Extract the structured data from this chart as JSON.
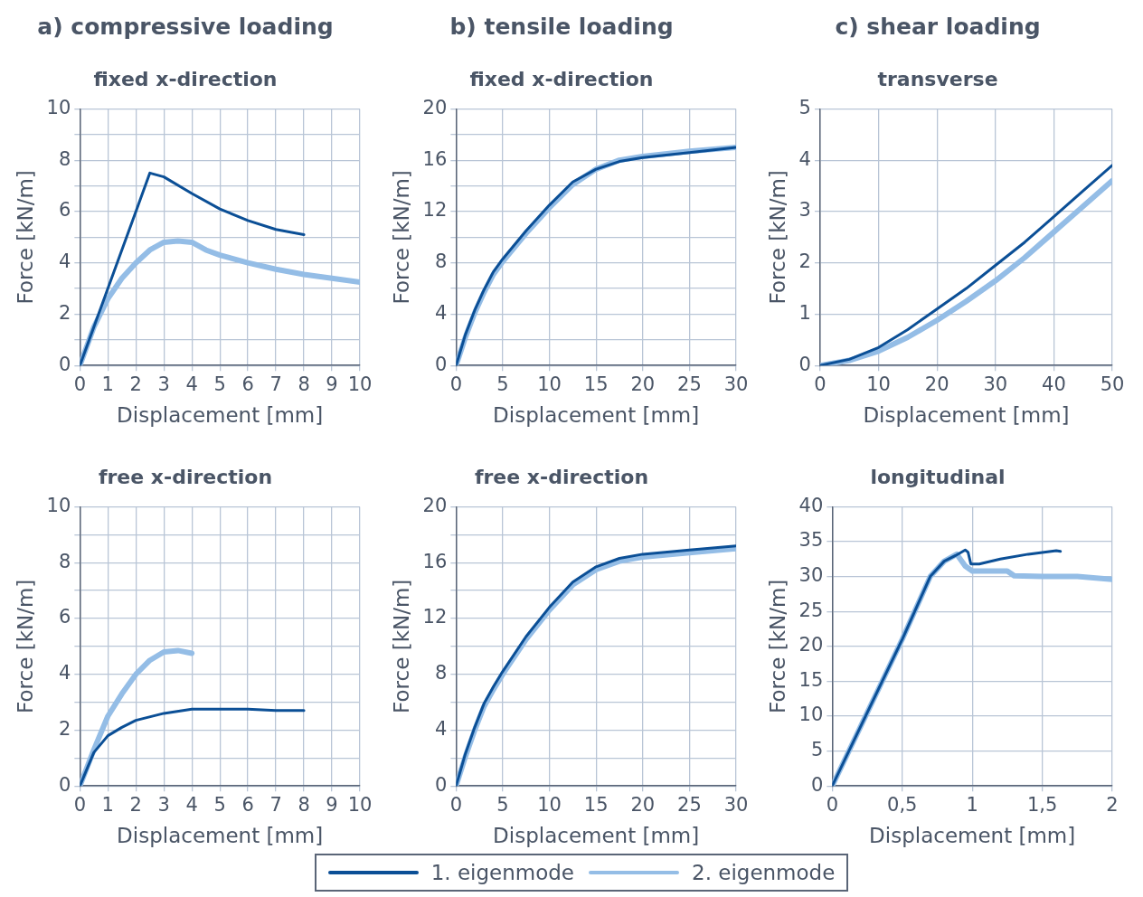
{
  "chart_data": [
    {
      "type": "line",
      "title": "a) compressive loading",
      "subtitle": "fixed x-direction",
      "xlabel": "Displacement [mm]",
      "ylabel": "Force [kN/m]",
      "xlim": [
        0,
        10
      ],
      "xticks": [
        0,
        1,
        2,
        3,
        4,
        5,
        6,
        7,
        8,
        9,
        10
      ],
      "ylim": [
        0,
        10
      ],
      "yticks": [
        0,
        {
          "value": 1,
          "label": null
        },
        2,
        {
          "value": 3,
          "label": null
        },
        4,
        {
          "value": 5,
          "label": null
        },
        6,
        {
          "value": 7,
          "label": null
        },
        8,
        {
          "value": 9,
          "label": null
        },
        10
      ],
      "grid": true,
      "marker": "none",
      "line_style": "solid",
      "series": [
        {
          "color": "#0b4f96",
          "x": [
            0,
            1,
            2,
            2.5,
            3,
            4,
            5,
            6,
            7,
            8
          ],
          "values": [
            0,
            3.0,
            6.0,
            7.5,
            7.35,
            6.7,
            6.1,
            5.65,
            5.3,
            5.1
          ]
        },
        {
          "color": "#94bde6",
          "x": [
            0,
            0.5,
            1,
            1.5,
            2,
            2.5,
            3,
            3.5,
            4,
            4.5,
            5,
            6,
            7,
            8,
            9,
            10
          ],
          "values": [
            0,
            1.5,
            2.6,
            3.4,
            4.0,
            4.5,
            4.8,
            4.85,
            4.8,
            4.5,
            4.3,
            4.0,
            3.75,
            3.55,
            3.4,
            3.25
          ]
        }
      ]
    },
    {
      "type": "line",
      "title": "b) tensile loading",
      "subtitle": "fixed x-direction",
      "xlabel": "Displacement [mm]",
      "ylabel": "Force [kN/m]",
      "xlim": [
        0,
        30
      ],
      "xticks": [
        0,
        5,
        10,
        15,
        20,
        25,
        30
      ],
      "ylim": [
        0,
        20
      ],
      "yticks": [
        0,
        {
          "value": 2,
          "label": null
        },
        4,
        {
          "value": 6,
          "label": null
        },
        8,
        {
          "value": 10,
          "label": null
        },
        12,
        {
          "value": 14,
          "label": null
        },
        16,
        {
          "value": 18,
          "label": null
        },
        20
      ],
      "grid": true,
      "marker": "none",
      "line_style": "solid",
      "series": [
        {
          "color": "#0b4f96",
          "x": [
            0,
            1,
            2,
            3,
            4,
            5,
            7.5,
            10,
            12.5,
            15,
            17.5,
            20,
            25,
            30
          ],
          "values": [
            0,
            2.4,
            4.3,
            5.9,
            7.3,
            8.3,
            10.5,
            12.5,
            14.3,
            15.3,
            15.9,
            16.2,
            16.6,
            17.0
          ]
        },
        {
          "color": "#94bde6",
          "x": [
            0,
            1,
            2,
            3,
            4,
            5,
            7.5,
            10,
            12.5,
            15,
            17.5,
            20,
            25,
            30
          ],
          "values": [
            0,
            2.2,
            4.1,
            5.7,
            7.1,
            8.1,
            10.3,
            12.3,
            14.1,
            15.3,
            16.0,
            16.3,
            16.7,
            17.0
          ]
        }
      ]
    },
    {
      "type": "line",
      "title": "c) shear loading",
      "subtitle": "transverse",
      "xlabel": "Displacement [mm]",
      "ylabel": "Force [kN/m]",
      "xlim": [
        0,
        50
      ],
      "xticks": [
        0,
        10,
        20,
        30,
        40,
        50
      ],
      "ylim": [
        0,
        5
      ],
      "yticks": [
        0,
        1,
        2,
        3,
        4,
        5
      ],
      "grid": true,
      "marker": "none",
      "line_style": "solid",
      "series": [
        {
          "color": "#0b4f96",
          "x": [
            0,
            5,
            10,
            15,
            20,
            25,
            30,
            35,
            40,
            45,
            50
          ],
          "values": [
            0,
            0.12,
            0.35,
            0.7,
            1.1,
            1.5,
            1.95,
            2.4,
            2.9,
            3.4,
            3.9
          ]
        },
        {
          "color": "#94bde6",
          "x": [
            0,
            5,
            10,
            15,
            20,
            25,
            30,
            35,
            40,
            45,
            50
          ],
          "values": [
            0,
            0.1,
            0.28,
            0.55,
            0.88,
            1.25,
            1.65,
            2.1,
            2.6,
            3.1,
            3.6
          ]
        }
      ]
    },
    {
      "type": "line",
      "title": "free x-direction",
      "xlabel": "Displacement [mm]",
      "ylabel": "Force [kN/m]",
      "xlim": [
        0,
        10
      ],
      "xticks": [
        0,
        1,
        2,
        3,
        4,
        5,
        6,
        7,
        8,
        9,
        10
      ],
      "ylim": [
        0,
        10
      ],
      "yticks": [
        0,
        {
          "value": 1,
          "label": null
        },
        2,
        {
          "value": 3,
          "label": null
        },
        4,
        {
          "value": 5,
          "label": null
        },
        6,
        {
          "value": 7,
          "label": null
        },
        8,
        {
          "value": 9,
          "label": null
        },
        10
      ],
      "grid": true,
      "marker": "none",
      "line_style": "solid",
      "series": [
        {
          "color": "#0b4f96",
          "x": [
            0,
            0.5,
            1,
            1.5,
            2,
            3,
            4,
            5,
            6,
            7,
            8
          ],
          "values": [
            0,
            1.2,
            1.8,
            2.1,
            2.35,
            2.6,
            2.75,
            2.75,
            2.75,
            2.7,
            2.7
          ]
        },
        {
          "color": "#94bde6",
          "x": [
            0,
            0.5,
            1,
            1.5,
            2,
            2.5,
            3,
            3.5,
            4
          ],
          "values": [
            0,
            1.3,
            2.5,
            3.3,
            4.0,
            4.5,
            4.8,
            4.85,
            4.75
          ]
        }
      ]
    },
    {
      "type": "line",
      "title": "free x-direction",
      "xlabel": "Displacement [mm]",
      "ylabel": "Force [kN/m]",
      "xlim": [
        0,
        30
      ],
      "xticks": [
        0,
        5,
        10,
        15,
        20,
        25,
        30
      ],
      "ylim": [
        0,
        20
      ],
      "yticks": [
        0,
        {
          "value": 2,
          "label": null
        },
        4,
        {
          "value": 6,
          "label": null
        },
        8,
        {
          "value": 10,
          "label": null
        },
        12,
        {
          "value": 14,
          "label": null
        },
        16,
        {
          "value": 18,
          "label": null
        },
        20
      ],
      "grid": true,
      "marker": "none",
      "line_style": "solid",
      "series": [
        {
          "color": "#0b4f96",
          "x": [
            0,
            1,
            2,
            3,
            4,
            5,
            7.5,
            10,
            12.5,
            15,
            17.5,
            20,
            25,
            30
          ],
          "values": [
            0,
            2.3,
            4.2,
            5.9,
            7.1,
            8.2,
            10.7,
            12.8,
            14.6,
            15.7,
            16.3,
            16.6,
            16.9,
            17.2
          ]
        },
        {
          "color": "#94bde6",
          "x": [
            0,
            1,
            2,
            3,
            4,
            5,
            7.5,
            10,
            12.5,
            15,
            17.5,
            20,
            25,
            30
          ],
          "values": [
            0,
            2.1,
            4.0,
            5.7,
            6.9,
            8.0,
            10.5,
            12.6,
            14.4,
            15.5,
            16.1,
            16.4,
            16.7,
            17.0
          ]
        }
      ]
    },
    {
      "type": "line",
      "title": "longitudinal",
      "xlabel": "Displacement [mm]",
      "ylabel": "Force [kN/m]",
      "xlim": [
        0,
        2
      ],
      "xticks": [
        0,
        {
          "value": 0.5,
          "label": "0,5"
        },
        1,
        {
          "value": 1.5,
          "label": "1,5"
        },
        2
      ],
      "ylim": [
        0,
        40
      ],
      "yticks": [
        0,
        5,
        10,
        15,
        20,
        25,
        30,
        35,
        40
      ],
      "grid": true,
      "marker": "none",
      "line_style": "solid",
      "legend": "bottom",
      "series": [
        {
          "name": "1. eigenmode",
          "color": "#0b4f96",
          "x": [
            0,
            0.25,
            0.5,
            0.6,
            0.7,
            0.8,
            0.88,
            0.95,
            0.97,
            0.99,
            1.05,
            1.2,
            1.4,
            1.6,
            1.63
          ],
          "values": [
            0,
            10.5,
            21,
            25.5,
            30,
            32.2,
            33,
            33.8,
            33.5,
            31.8,
            31.8,
            32.5,
            33.2,
            33.7,
            33.6
          ]
        },
        {
          "name": "2. eigenmode",
          "color": "#94bde6",
          "x": [
            0,
            0.25,
            0.5,
            0.6,
            0.7,
            0.8,
            0.89,
            0.95,
            1.0,
            1.15,
            1.25,
            1.3,
            1.5,
            1.75,
            2
          ],
          "values": [
            0,
            10.5,
            21,
            25.5,
            30,
            32.2,
            33.2,
            31.5,
            30.8,
            30.8,
            30.8,
            30.1,
            30,
            30,
            29.6
          ]
        }
      ]
    }
  ]
}
